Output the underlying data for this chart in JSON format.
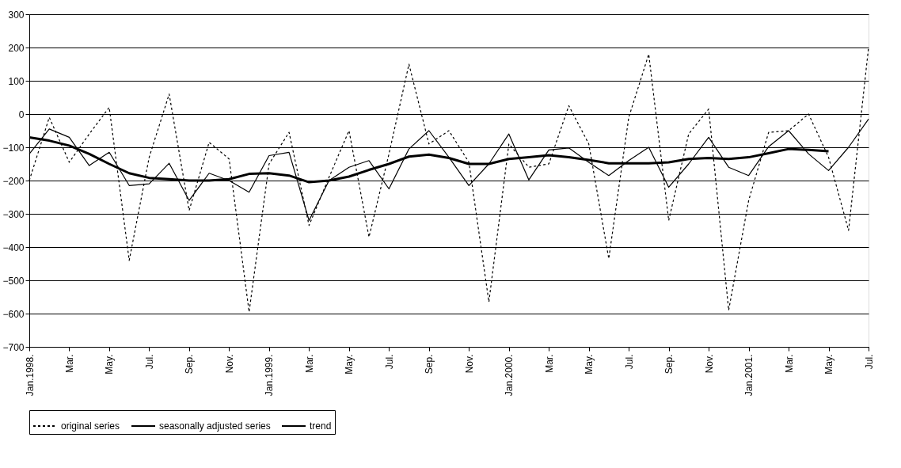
{
  "chart_data": {
    "type": "line",
    "categories": [
      "Jan.1998.",
      null,
      "Mar.",
      null,
      "May.",
      null,
      "Jul.",
      null,
      "Sep.",
      null,
      "Nov.",
      null,
      "Jan.1999.",
      null,
      "Mar.",
      null,
      "May.",
      null,
      "Jul.",
      null,
      "Sep.",
      null,
      "Nov.",
      null,
      "Jan.2000.",
      null,
      "Mar.",
      null,
      "May.",
      null,
      "Jul.",
      null,
      "Sep.",
      null,
      "Nov.",
      null,
      "Jan.2001.",
      null,
      "Mar.",
      null,
      "May.",
      null,
      "Jul."
    ],
    "series": [
      {
        "name": "original series",
        "color": "#000000",
        "line_style": "dotted",
        "values": [
          -200,
          -10,
          -145,
          -60,
          20,
          -440,
          -130,
          60,
          -290,
          -85,
          -135,
          -595,
          -150,
          -55,
          -335,
          -190,
          -50,
          -370,
          -120,
          150,
          -90,
          -50,
          -145,
          -565,
          -90,
          -160,
          -150,
          25,
          -90,
          -435,
          -10,
          180,
          -320,
          -60,
          15,
          -590,
          -260,
          -55,
          -50,
          0,
          -130,
          -350,
          200
        ]
      },
      {
        "name": "seasonally adjusted series",
        "color": "#000000",
        "line_style": "solid",
        "values": [
          -120,
          -45,
          -70,
          -155,
          -115,
          -215,
          -210,
          -148,
          -260,
          -178,
          -200,
          -235,
          -125,
          -115,
          -320,
          -200,
          -160,
          -140,
          -225,
          -105,
          -50,
          -130,
          -215,
          -150,
          -60,
          -198,
          -108,
          -102,
          -145,
          -185,
          -140,
          -100,
          -220,
          -150,
          -70,
          -160,
          -185,
          -98,
          -50,
          -120,
          -170,
          -100,
          -15
        ]
      },
      {
        "name": "trend",
        "color": "#000000",
        "line_style": "solid",
        "values": [
          -70,
          -80,
          -95,
          -120,
          -150,
          -178,
          -192,
          -196,
          -200,
          -200,
          -196,
          -180,
          -178,
          -185,
          -205,
          -200,
          -188,
          -168,
          -150,
          -128,
          -122,
          -132,
          -150,
          -150,
          -135,
          -130,
          -124,
          -130,
          -138,
          -148,
          -148,
          -148,
          -145,
          -135,
          -132,
          -135,
          -130,
          -118,
          -105,
          -108,
          -112,
          null,
          null
        ]
      }
    ],
    "ylim": [
      -700,
      300
    ],
    "yticks": [
      -700,
      -600,
      -500,
      -400,
      -300,
      -200,
      -100,
      0,
      100,
      200,
      300
    ],
    "grid": "y",
    "legend": "bottom",
    "marker": "none"
  }
}
